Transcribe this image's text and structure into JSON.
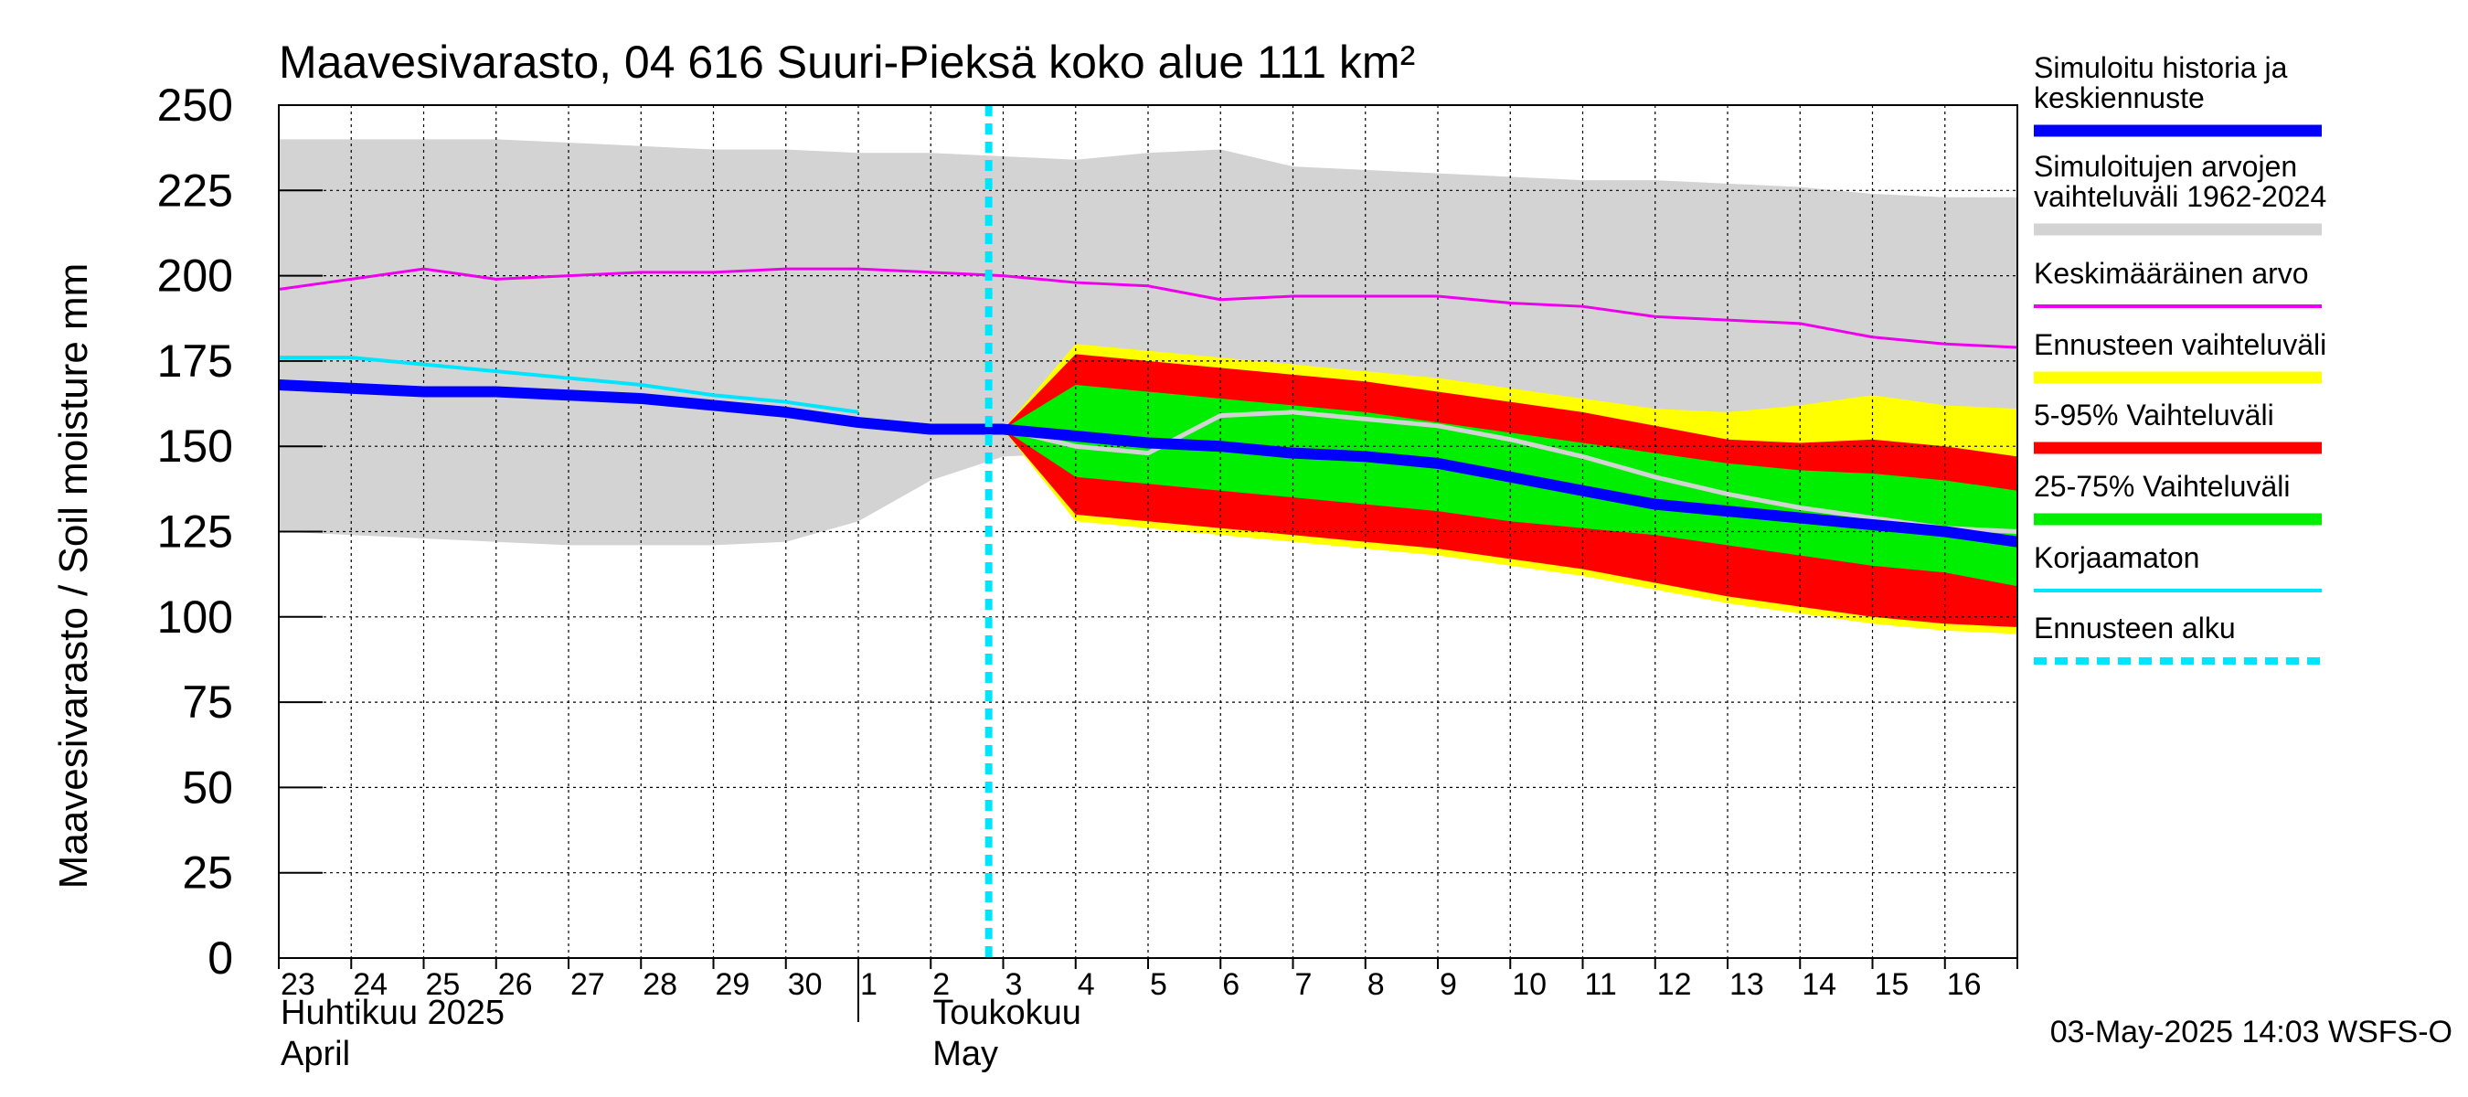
{
  "chart_data": {
    "type": "area",
    "title": "Maavesivarasto, 04 616 Suuri-Pieksä koko alue 111 km²",
    "ylabel": "Maavesivarasto / Soil moisture   mm",
    "ylim": [
      0,
      250
    ],
    "yticks": [
      0,
      25,
      50,
      75,
      100,
      125,
      150,
      175,
      200,
      225,
      250
    ],
    "x_start": 23,
    "x_end": 47,
    "x_tick_labels": [
      {
        "x": 23,
        "label": "23"
      },
      {
        "x": 24,
        "label": "24"
      },
      {
        "x": 25,
        "label": "25"
      },
      {
        "x": 26,
        "label": "26"
      },
      {
        "x": 27,
        "label": "27"
      },
      {
        "x": 28,
        "label": "28"
      },
      {
        "x": 29,
        "label": "29"
      },
      {
        "x": 30,
        "label": "30"
      },
      {
        "x": 31,
        "label": "1"
      },
      {
        "x": 32,
        "label": "2"
      },
      {
        "x": 33,
        "label": "3"
      },
      {
        "x": 34,
        "label": "4"
      },
      {
        "x": 35,
        "label": "5"
      },
      {
        "x": 36,
        "label": "6"
      },
      {
        "x": 37,
        "label": "7"
      },
      {
        "x": 38,
        "label": "8"
      },
      {
        "x": 39,
        "label": "9"
      },
      {
        "x": 40,
        "label": "10"
      },
      {
        "x": 41,
        "label": "11"
      },
      {
        "x": 42,
        "label": "12"
      },
      {
        "x": 43,
        "label": "13"
      },
      {
        "x": 44,
        "label": "14"
      },
      {
        "x": 45,
        "label": "15"
      },
      {
        "x": 46,
        "label": "16"
      }
    ],
    "month_labels": [
      {
        "x": 23,
        "line1": "Huhtikuu  2025",
        "line2": "April"
      },
      {
        "x": 32,
        "line1": "Toukokuu",
        "line2": "May"
      }
    ],
    "month_divider_x": 31,
    "forecast_start_x": 32.8,
    "grid": true,
    "legend_position": "right",
    "series": [
      {
        "name": "Simuloitujen arvojen vaihteluväli 1962-2024",
        "kind": "band",
        "color": "#d3d3d3",
        "x": [
          23,
          24,
          25,
          26,
          27,
          28,
          29,
          30,
          31,
          32,
          33,
          34,
          35,
          36,
          37,
          38,
          39,
          40,
          41,
          42,
          43,
          44,
          45,
          46,
          47
        ],
        "upper": [
          240,
          240,
          240,
          240,
          239,
          238,
          237,
          237,
          236,
          236,
          235,
          234,
          236,
          237,
          232,
          231,
          230,
          229,
          228,
          228,
          227,
          226,
          224,
          223,
          223
        ],
        "lower": [
          125,
          124,
          123,
          122,
          121,
          121,
          121,
          122,
          128,
          140,
          147,
          148,
          149,
          150,
          150,
          150,
          150,
          150,
          150,
          150,
          150,
          150,
          150,
          150,
          150
        ]
      },
      {
        "name": "Ennusteen vaihteluväli",
        "kind": "band",
        "color": "#ffff00",
        "x": [
          33,
          34,
          35,
          36,
          37,
          38,
          39,
          40,
          41,
          42,
          43,
          44,
          45,
          46,
          47
        ],
        "upper": [
          155,
          180,
          178,
          176,
          174,
          172,
          170,
          167,
          164,
          161,
          160,
          162,
          165,
          162,
          161
        ],
        "lower": [
          155,
          128,
          126,
          124,
          122,
          120,
          118,
          115,
          112,
          108,
          104,
          101,
          98,
          96,
          95
        ]
      },
      {
        "name": "5-95% Vaihteluväli",
        "kind": "band",
        "color": "#ff0000",
        "x": [
          33,
          34,
          35,
          36,
          37,
          38,
          39,
          40,
          41,
          42,
          43,
          44,
          45,
          46,
          47
        ],
        "upper": [
          155,
          177,
          175,
          173,
          171,
          169,
          166,
          163,
          160,
          156,
          152,
          151,
          152,
          150,
          147
        ],
        "lower": [
          155,
          130,
          128,
          126,
          124,
          122,
          120,
          117,
          114,
          110,
          106,
          103,
          100,
          98,
          97
        ]
      },
      {
        "name": "25-75% Vaihteluväli",
        "kind": "band",
        "color": "#00ee00",
        "x": [
          33,
          34,
          35,
          36,
          37,
          38,
          39,
          40,
          41,
          42,
          43,
          44,
          45,
          46,
          47
        ],
        "upper": [
          155,
          168,
          166,
          164,
          162,
          160,
          157,
          154,
          151,
          148,
          145,
          143,
          142,
          140,
          137
        ],
        "lower": [
          155,
          141,
          139,
          137,
          135,
          133,
          131,
          128,
          126,
          124,
          121,
          118,
          115,
          113,
          109
        ]
      },
      {
        "name": "Keskimääräinen arvo",
        "kind": "line",
        "color": "#ee00ee",
        "width": 3,
        "x": [
          23,
          24,
          25,
          26,
          27,
          28,
          29,
          30,
          31,
          32,
          33,
          34,
          35,
          36,
          37,
          38,
          39,
          40,
          41,
          42,
          43,
          44,
          45,
          46,
          47
        ],
        "y": [
          196,
          199,
          202,
          199,
          200,
          201,
          201,
          202,
          202,
          201,
          200,
          198,
          197,
          193,
          194,
          194,
          194,
          192,
          191,
          188,
          187,
          186,
          182,
          180,
          179
        ]
      },
      {
        "name": "gray-median",
        "kind": "line",
        "color": "#d3d3d3",
        "width": 5,
        "x": [
          33,
          34,
          35,
          36,
          37,
          38,
          39,
          40,
          41,
          42,
          43,
          44,
          45,
          46,
          47
        ],
        "y": [
          155,
          150,
          148,
          159,
          160,
          158,
          156,
          152,
          147,
          141,
          136,
          132,
          129,
          126,
          125
        ]
      },
      {
        "name": "Korjaamaton",
        "kind": "line",
        "color": "#00e5ff",
        "width": 4,
        "x": [
          23,
          24,
          25,
          26,
          27,
          28,
          29,
          30,
          31
        ],
        "y": [
          176,
          176,
          174,
          172,
          170,
          168,
          165,
          163,
          160
        ]
      },
      {
        "name": "Simuloitu historia ja keskiennuste",
        "kind": "line",
        "color": "#0000ff",
        "width": 12,
        "x": [
          23,
          24,
          25,
          26,
          27,
          28,
          29,
          30,
          31,
          32,
          33,
          34,
          35,
          36,
          37,
          38,
          39,
          40,
          41,
          42,
          43,
          44,
          45,
          46,
          47
        ],
        "y": [
          168,
          167,
          166,
          166,
          165,
          164,
          162,
          160,
          157,
          155,
          155,
          153,
          151,
          150,
          148,
          147,
          145,
          141,
          137,
          133,
          131,
          129,
          127,
          125,
          122
        ]
      }
    ],
    "legend": [
      {
        "label": "Simuloitu historia ja\nkeskiennuste",
        "color": "#0000ff",
        "style": "thick"
      },
      {
        "label": "Simuloitujen arvojen\nvaihteluväli 1962-2024",
        "color": "#d3d3d3",
        "style": "thick"
      },
      {
        "label": "Keskimääräinen arvo",
        "color": "#ee00ee",
        "style": "thin"
      },
      {
        "label": "Ennusteen vaihteluväli",
        "color": "#ffff00",
        "style": "thick"
      },
      {
        "label": "5-95% Vaihteluväli",
        "color": "#ff0000",
        "style": "thick"
      },
      {
        "label": "25-75% Vaihteluväli",
        "color": "#00ee00",
        "style": "thick"
      },
      {
        "label": "Korjaamaton",
        "color": "#00e5ff",
        "style": "thin"
      },
      {
        "label": "Ennusteen alku",
        "color": "#00e5ff",
        "style": "dashed"
      }
    ],
    "footer": "03-May-2025 14:03 WSFS-O"
  }
}
